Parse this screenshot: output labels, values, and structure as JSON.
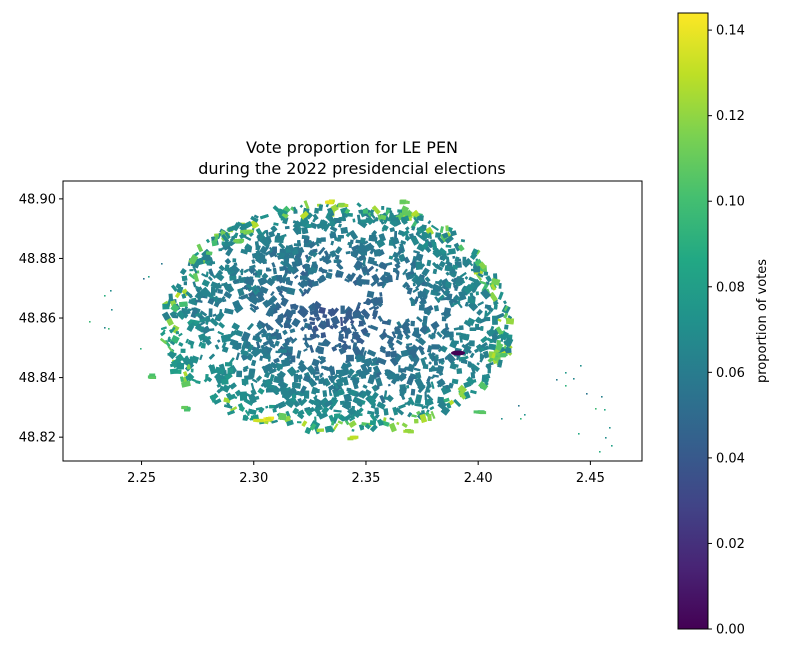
{
  "chart_data": {
    "type": "choropleth-map",
    "title_lines": [
      "Vote proportion for LE PEN",
      "during the 2022 presidencial elections"
    ],
    "x_ticks": [
      "2.25",
      "2.30",
      "2.35",
      "2.40",
      "2.45"
    ],
    "x_tick_values": [
      2.25,
      2.3,
      2.35,
      2.4,
      2.45
    ],
    "y_ticks": [
      "48.82",
      "48.84",
      "48.86",
      "48.88",
      "48.90"
    ],
    "y_tick_values": [
      48.82,
      48.84,
      48.86,
      48.88,
      48.9
    ],
    "xlim": [
      2.215,
      2.473
    ],
    "ylim": [
      48.812,
      48.906
    ],
    "colorbar": {
      "label": "proportion of votes",
      "colormap": "viridis",
      "range": [
        0.0,
        0.144
      ],
      "ticks": [
        "0.00",
        "0.02",
        "0.04",
        "0.06",
        "0.08",
        "0.10",
        "0.12",
        "0.14"
      ],
      "tick_values": [
        0.0,
        0.02,
        0.04,
        0.06,
        0.08,
        0.1,
        0.12,
        0.14
      ]
    },
    "grid": false
  }
}
